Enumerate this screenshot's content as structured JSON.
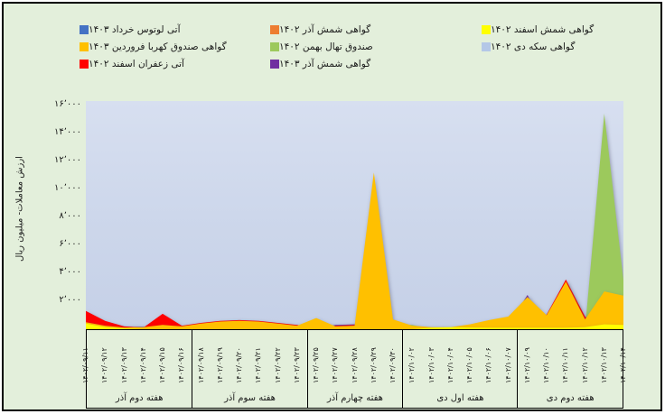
{
  "chart_data": {
    "type": "area",
    "title": "",
    "xlabel": "",
    "ylabel": "ارزش معاملات- میلیون ریال",
    "ylim": [
      0,
      16000
    ],
    "grid": false,
    "legend_position": "top",
    "page_bg": "#E3EFDB",
    "plot_bg": "#CDD7EB",
    "y_ticks": [
      {
        "value": 16000,
        "label": "۱۶٬۰۰۰"
      },
      {
        "value": 14000,
        "label": "۱۴٬۰۰۰"
      },
      {
        "value": 12000,
        "label": "۱۲٬۰۰۰"
      },
      {
        "value": 10000,
        "label": "۱۰٬۰۰۰"
      },
      {
        "value": 8000,
        "label": "۸٬۰۰۰"
      },
      {
        "value": 6000,
        "label": "۶٬۰۰۰"
      },
      {
        "value": 4000,
        "label": "۴٬۰۰۰"
      },
      {
        "value": 2000,
        "label": "۲٬۰۰۰"
      }
    ],
    "categories": [
      "۱۴۰۲/۰۹/۱۱",
      "۱۴۰۲/۰۹/۱۲",
      "۱۴۰۲/۰۹/۱۳",
      "۱۴۰۲/۰۹/۱۴",
      "۱۴۰۲/۰۹/۱۵",
      "۱۴۰۲/۰۹/۱۶",
      "۱۴۰۲/۰۹/۱۸",
      "۱۴۰۲/۰۹/۱۹",
      "۱۴۰۲/۰۹/۲۰",
      "۱۴۰۲/۰۹/۲۱",
      "۱۴۰۲/۰۹/۲۲",
      "۱۴۰۲/۰۹/۲۳",
      "۱۴۰۲/۰۹/۲۵",
      "۱۴۰۲/۰۹/۲۷",
      "۱۴۰۲/۰۹/۲۸",
      "۱۴۰۲/۰۹/۲۹",
      "۱۴۰۲/۰۹/۳۰",
      "۱۴۰۲/۱۰/۰۲",
      "۱۴۰۲/۱۰/۰۳",
      "۱۴۰۲/۱۰/۰۴",
      "۱۴۰۲/۱۰/۰۵",
      "۱۴۰۲/۱۰/۰۶",
      "۱۴۰۲/۱۰/۰۷",
      "۱۴۰۲/۱۰/۰۹",
      "۱۴۰۲/۱۰/۱۰",
      "۱۴۰۲/۱۰/۱۱",
      "۱۴۰۲/۱۰/۱۲",
      "۱۴۰۲/۱۰/۱۳",
      "۱۴۰۲/۱۰/۱۴"
    ],
    "week_groups": [
      {
        "label": "هفته دوم آذر",
        "count": 6
      },
      {
        "label": "هفته سوم آذر",
        "count": 6
      },
      {
        "label": "هفته چهارم آذر",
        "count": 5
      },
      {
        "label": "هفته اول دی",
        "count": 6
      },
      {
        "label": "هفته دوم دی",
        "count": 6
      }
    ],
    "series": [
      {
        "name": "گواهی شمش اسفند ۱۴۰۲",
        "color": "#FFFF00",
        "values": [
          400,
          150,
          50,
          0,
          0,
          0,
          0,
          0,
          0,
          0,
          0,
          0,
          0,
          0,
          0,
          0,
          0,
          0,
          100,
          150,
          120,
          100,
          100,
          100,
          100,
          100,
          150,
          350,
          300
        ]
      },
      {
        "name": "گواهی سکه دی ۱۴۰۲",
        "color": "#B4C7E7",
        "values": [
          0,
          0,
          0,
          0,
          0,
          0,
          0,
          0,
          0,
          0,
          0,
          0,
          0,
          0,
          0,
          0,
          0,
          0,
          0,
          0,
          0,
          0,
          0,
          0,
          0,
          0,
          0,
          0,
          0
        ]
      },
      {
        "name": "گواهی شمش آذر ۱۴۰۲",
        "color": "#ED7D31",
        "values": [
          250,
          100,
          0,
          0,
          0,
          0,
          0,
          0,
          0,
          0,
          0,
          0,
          0,
          0,
          0,
          0,
          0,
          0,
          0,
          0,
          0,
          0,
          0,
          0,
          0,
          0,
          0,
          0,
          0
        ]
      },
      {
        "name": "صندوق تهال بهمن ۱۴۰۲",
        "color": "#9CC95C",
        "values": [
          0,
          0,
          0,
          0,
          0,
          0,
          0,
          0,
          0,
          0,
          0,
          0,
          0,
          200,
          250,
          0,
          300,
          300,
          0,
          0,
          0,
          0,
          0,
          0,
          0,
          0,
          0,
          15400,
          3500
        ]
      },
      {
        "name": "گواهی شمش آذر ۱۴۰۳",
        "color": "#7030A0",
        "values": [
          0,
          0,
          150,
          180,
          150,
          120,
          80,
          0,
          0,
          0,
          0,
          0,
          0,
          300,
          350,
          0,
          0,
          0,
          0,
          0,
          0,
          0,
          300,
          2450,
          0,
          0,
          0,
          0,
          0
        ]
      },
      {
        "name": "آتی لوتوس خرداد ۱۴۰۳",
        "color": "#4472C4",
        "values": [
          0,
          0,
          0,
          0,
          0,
          0,
          0,
          0,
          0,
          0,
          0,
          0,
          0,
          0,
          0,
          0,
          0,
          0,
          0,
          0,
          0,
          0,
          0,
          0,
          0,
          0,
          0,
          0,
          0
        ]
      },
      {
        "name": "گواهی صندوق کهربا فروردین ۱۴۰۳",
        "color": "#FFC000",
        "values": [
          500,
          250,
          120,
          150,
          300,
          200,
          400,
          550,
          600,
          550,
          400,
          250,
          800,
          200,
          250,
          11200,
          700,
          250,
          150,
          150,
          350,
          650,
          900,
          2300,
          1000,
          3400,
          700,
          2700,
          2400
        ]
      },
      {
        "name": "آتی زعفران اسفند ۱۴۰۲",
        "color": "#FF0000",
        "values": [
          1300,
          600,
          200,
          120,
          1100,
          250,
          450,
          600,
          650,
          600,
          450,
          300,
          150,
          250,
          300,
          0,
          0,
          0,
          0,
          0,
          0,
          0,
          0,
          0,
          1050,
          3550,
          900,
          0,
          0
        ]
      }
    ],
    "draw_order": [
      5,
      1,
      2,
      3,
      4,
      7,
      6,
      0
    ],
    "legend_columns": [
      [
        5,
        6,
        7
      ],
      [
        2,
        3,
        4
      ],
      [
        0,
        1
      ]
    ],
    "y_scale_max": 16300
  }
}
